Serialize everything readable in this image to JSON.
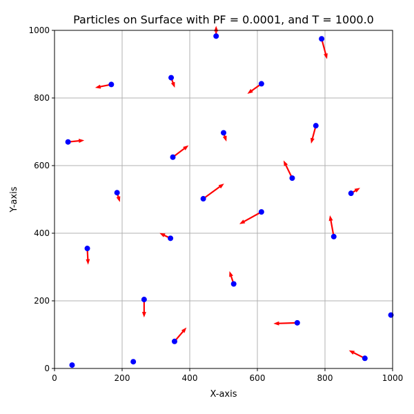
{
  "chart_data": {
    "type": "scatter",
    "title": "Particles on Surface with PF = 0.0001, and T = 1000.0",
    "xlabel": "X-axis",
    "ylabel": "Y-axis",
    "xlim": [
      0,
      1000
    ],
    "ylim": [
      0,
      1000
    ],
    "xticks": [
      0,
      200,
      400,
      600,
      800,
      1000
    ],
    "yticks": [
      0,
      200,
      400,
      600,
      800,
      1000
    ],
    "grid": true,
    "colors": {
      "particle": "#0000ff",
      "arrow": "#ff0000",
      "grid": "#b0b0b0"
    },
    "particles": [
      {
        "x": 478,
        "y": 983,
        "dx": 0,
        "dy": 22
      },
      {
        "x": 790,
        "y": 975,
        "dx": 14,
        "dy": -52
      },
      {
        "x": 168,
        "y": 840,
        "dx": -40,
        "dy": -8
      },
      {
        "x": 345,
        "y": 860,
        "dx": 8,
        "dy": -22
      },
      {
        "x": 612,
        "y": 842,
        "dx": -35,
        "dy": -25
      },
      {
        "x": 40,
        "y": 670,
        "dx": 40,
        "dy": 4
      },
      {
        "x": 500,
        "y": 697,
        "dx": 6,
        "dy": -18
      },
      {
        "x": 773,
        "y": 718,
        "dx": -12,
        "dy": -45
      },
      {
        "x": 350,
        "y": 625,
        "dx": 40,
        "dy": 30
      },
      {
        "x": 703,
        "y": 563,
        "dx": -22,
        "dy": 45
      },
      {
        "x": 185,
        "y": 520,
        "dx": 6,
        "dy": -20
      },
      {
        "x": 440,
        "y": 502,
        "dx": 55,
        "dy": 40
      },
      {
        "x": 612,
        "y": 463,
        "dx": -58,
        "dy": -32
      },
      {
        "x": 877,
        "y": 518,
        "dx": 20,
        "dy": 12
      },
      {
        "x": 826,
        "y": 390,
        "dx": -10,
        "dy": 55
      },
      {
        "x": 97,
        "y": 355,
        "dx": 2,
        "dy": -40
      },
      {
        "x": 343,
        "y": 385,
        "dx": -25,
        "dy": 12
      },
      {
        "x": 530,
        "y": 250,
        "dx": -10,
        "dy": 30
      },
      {
        "x": 265,
        "y": 204,
        "dx": 0,
        "dy": -45
      },
      {
        "x": 718,
        "y": 135,
        "dx": -62,
        "dy": -2
      },
      {
        "x": 355,
        "y": 80,
        "dx": 30,
        "dy": 35
      },
      {
        "x": 995,
        "y": 158,
        "dx": 0,
        "dy": 0
      },
      {
        "x": 918,
        "y": 30,
        "dx": -40,
        "dy": 20
      },
      {
        "x": 52,
        "y": 10,
        "dx": 0,
        "dy": 0
      },
      {
        "x": 233,
        "y": 20,
        "dx": 0,
        "dy": 0
      }
    ]
  }
}
